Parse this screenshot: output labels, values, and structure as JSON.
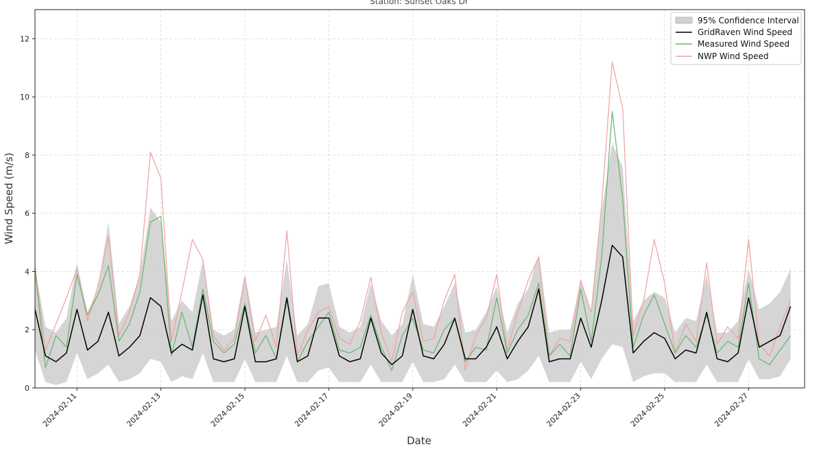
{
  "chart_data": {
    "type": "line",
    "title": "Station: Sunset Oaks Dr",
    "xlabel": "Date",
    "ylabel": "Wind Speed (m/s)",
    "ylim": [
      0,
      13
    ],
    "xlim": [
      "2024-02-10 00:00",
      "2024-02-28 08:00"
    ],
    "y_ticks": [
      0,
      2,
      4,
      6,
      8,
      10,
      12
    ],
    "x_ticks": [
      "2024-02-11",
      "2024-02-13",
      "2024-02-15",
      "2024-02-17",
      "2024-02-19",
      "2024-02-21",
      "2024-02-23",
      "2024-02-25",
      "2024-02-27"
    ],
    "grid": true,
    "legend_position": "top-right",
    "x": [
      "2024-02-10 00:00",
      "2024-02-10 06:00",
      "2024-02-10 12:00",
      "2024-02-10 18:00",
      "2024-02-11 00:00",
      "2024-02-11 06:00",
      "2024-02-11 12:00",
      "2024-02-11 18:00",
      "2024-02-12 00:00",
      "2024-02-12 06:00",
      "2024-02-12 12:00",
      "2024-02-12 18:00",
      "2024-02-13 00:00",
      "2024-02-13 06:00",
      "2024-02-13 12:00",
      "2024-02-13 18:00",
      "2024-02-14 00:00",
      "2024-02-14 06:00",
      "2024-02-14 12:00",
      "2024-02-14 18:00",
      "2024-02-15 00:00",
      "2024-02-15 06:00",
      "2024-02-15 12:00",
      "2024-02-15 18:00",
      "2024-02-16 00:00",
      "2024-02-16 06:00",
      "2024-02-16 12:00",
      "2024-02-16 18:00",
      "2024-02-17 00:00",
      "2024-02-17 06:00",
      "2024-02-17 12:00",
      "2024-02-17 18:00",
      "2024-02-18 00:00",
      "2024-02-18 06:00",
      "2024-02-18 12:00",
      "2024-02-18 18:00",
      "2024-02-19 00:00",
      "2024-02-19 06:00",
      "2024-02-19 12:00",
      "2024-02-19 18:00",
      "2024-02-20 00:00",
      "2024-02-20 06:00",
      "2024-02-20 12:00",
      "2024-02-20 18:00",
      "2024-02-21 00:00",
      "2024-02-21 06:00",
      "2024-02-21 12:00",
      "2024-02-21 18:00",
      "2024-02-22 00:00",
      "2024-02-22 06:00",
      "2024-02-22 12:00",
      "2024-02-22 18:00",
      "2024-02-23 00:00",
      "2024-02-23 06:00",
      "2024-02-23 12:00",
      "2024-02-23 18:00",
      "2024-02-24 00:00",
      "2024-02-24 06:00",
      "2024-02-24 12:00",
      "2024-02-24 18:00",
      "2024-02-25 00:00",
      "2024-02-25 06:00",
      "2024-02-25 12:00",
      "2024-02-25 18:00",
      "2024-02-26 00:00",
      "2024-02-26 06:00",
      "2024-02-26 12:00",
      "2024-02-26 18:00",
      "2024-02-27 00:00",
      "2024-02-27 06:00",
      "2024-02-27 12:00",
      "2024-02-27 18:00",
      "2024-02-28 00:00"
    ],
    "series": [
      {
        "name": "GridRaven Wind Speed",
        "color": "#000000",
        "values": [
          2.7,
          1.1,
          0.9,
          1.2,
          2.7,
          1.3,
          1.6,
          2.6,
          1.1,
          1.4,
          1.8,
          3.1,
          2.8,
          1.2,
          1.5,
          1.3,
          3.2,
          1.0,
          0.9,
          1.0,
          2.8,
          0.9,
          0.9,
          1.0,
          3.1,
          0.9,
          1.1,
          2.4,
          2.4,
          1.1,
          0.9,
          1.0,
          2.4,
          1.2,
          0.8,
          1.1,
          2.7,
          1.1,
          1.0,
          1.5,
          2.4,
          1.0,
          1.0,
          1.4,
          2.1,
          1.0,
          1.6,
          2.1,
          3.4,
          0.9,
          1.0,
          1.0,
          2.4,
          1.4,
          3.0,
          4.9,
          4.5,
          1.2,
          1.6,
          1.9,
          1.7,
          1.0,
          1.3,
          1.2,
          2.6,
          1.0,
          0.9,
          1.2,
          3.1,
          1.4,
          1.6,
          1.8,
          2.8
        ]
      },
      {
        "name": "Measured Wind Speed",
        "color": "#6ab36a",
        "values": [
          4.1,
          0.7,
          1.8,
          1.4,
          3.9,
          2.5,
          3.2,
          4.2,
          1.6,
          2.2,
          3.3,
          5.7,
          5.9,
          1.1,
          2.6,
          1.4,
          3.4,
          1.6,
          1.2,
          1.5,
          2.9,
          1.2,
          1.8,
          1.0,
          3.0,
          0.9,
          1.6,
          2.1,
          2.6,
          1.3,
          1.2,
          1.4,
          2.5,
          1.4,
          0.6,
          1.8,
          2.4,
          1.3,
          1.2,
          2.0,
          2.4,
          0.9,
          1.4,
          1.3,
          3.1,
          1.2,
          2.0,
          2.5,
          3.6,
          1.1,
          1.5,
          1.1,
          3.4,
          1.6,
          4.5,
          9.5,
          6.5,
          1.4,
          2.5,
          3.2,
          2.2,
          1.2,
          1.8,
          1.4,
          2.5,
          1.2,
          1.6,
          1.4,
          3.6,
          1.0,
          0.8,
          1.3,
          1.8
        ]
      },
      {
        "name": "NWP Wind Speed",
        "color": "#f0a0a0",
        "values": [
          4.2,
          1.3,
          2.2,
          3.1,
          4.1,
          2.3,
          3.5,
          5.2,
          1.8,
          2.6,
          3.9,
          8.1,
          7.2,
          1.6,
          3.3,
          5.1,
          4.4,
          1.8,
          1.3,
          1.7,
          3.8,
          1.6,
          2.5,
          1.4,
          5.4,
          1.1,
          2.0,
          2.6,
          2.8,
          1.7,
          1.5,
          2.3,
          3.8,
          1.9,
          0.9,
          2.6,
          3.3,
          1.6,
          1.7,
          3.0,
          3.9,
          0.6,
          1.8,
          2.4,
          3.9,
          1.3,
          2.6,
          3.7,
          4.5,
          1.1,
          1.7,
          1.6,
          3.7,
          2.6,
          6.3,
          11.2,
          9.6,
          1.8,
          3.0,
          5.1,
          3.6,
          1.2,
          2.2,
          1.6,
          4.3,
          1.5,
          2.1,
          1.7,
          5.1,
          1.5,
          1.1,
          2.1,
          3.0
        ]
      },
      {
        "name": "95% Confidence Interval",
        "color": "#d0d0d0",
        "lower": [
          1.3,
          0.2,
          0.1,
          0.2,
          1.2,
          0.3,
          0.5,
          0.8,
          0.2,
          0.3,
          0.5,
          1.0,
          0.9,
          0.2,
          0.4,
          0.3,
          1.2,
          0.2,
          0.2,
          0.2,
          1.0,
          0.2,
          0.2,
          0.2,
          1.1,
          0.2,
          0.2,
          0.6,
          0.7,
          0.2,
          0.2,
          0.2,
          0.8,
          0.2,
          0.2,
          0.2,
          0.9,
          0.2,
          0.2,
          0.3,
          0.8,
          0.2,
          0.2,
          0.2,
          0.6,
          0.2,
          0.3,
          0.6,
          1.1,
          0.2,
          0.2,
          0.2,
          0.9,
          0.3,
          1.0,
          1.5,
          1.4,
          0.2,
          0.4,
          0.5,
          0.5,
          0.2,
          0.2,
          0.2,
          0.8,
          0.2,
          0.2,
          0.2,
          1.0,
          0.3,
          0.3,
          0.4,
          1.0
        ],
        "upper": [
          4.1,
          2.1,
          1.9,
          2.4,
          4.3,
          2.6,
          3.4,
          5.7,
          2.2,
          2.8,
          3.9,
          6.2,
          5.7,
          2.3,
          3.0,
          2.6,
          4.4,
          2.0,
          1.8,
          2.0,
          3.9,
          1.9,
          2.0,
          2.1,
          4.4,
          1.8,
          2.2,
          3.5,
          3.6,
          2.1,
          1.9,
          2.1,
          3.6,
          2.3,
          1.8,
          2.2,
          3.9,
          2.2,
          2.1,
          2.8,
          3.6,
          1.9,
          2.0,
          2.6,
          3.5,
          1.9,
          2.9,
          3.4,
          4.6,
          1.9,
          2.0,
          2.0,
          3.7,
          2.6,
          6.1,
          8.4,
          7.6,
          2.3,
          3.0,
          3.3,
          3.1,
          1.9,
          2.4,
          2.3,
          3.9,
          1.9,
          1.9,
          2.3,
          4.1,
          2.7,
          2.9,
          3.3,
          4.1
        ]
      }
    ]
  }
}
